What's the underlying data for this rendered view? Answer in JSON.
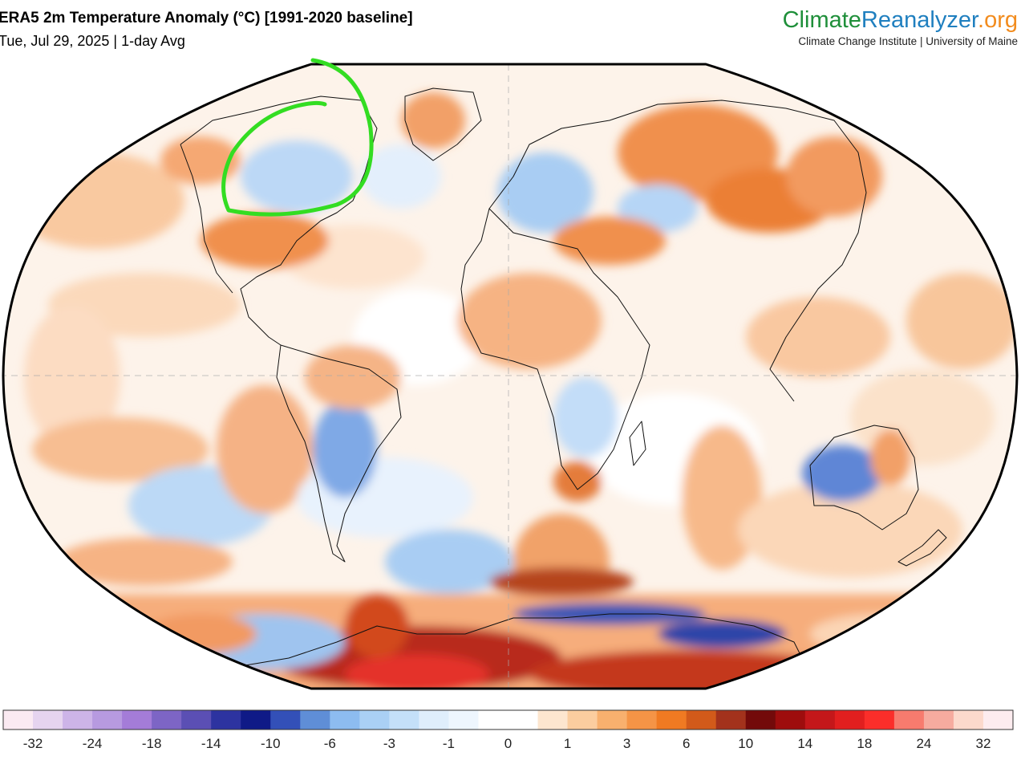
{
  "header": {
    "title": "ERA5 2m Temperature Anomaly (°C) [1991-2020 baseline]",
    "subtitle": "Tue, Jul 29, 2025 | 1-day Avg"
  },
  "brand": {
    "name_part1": "Climate",
    "name_part2": "Reanalyzer",
    "name_part3": ".org",
    "tagline": "Climate Change Institute | University of Maine",
    "colors": {
      "part1": "#1f8f3a",
      "part2": "#1f7fbf",
      "part3": "#f28c1e"
    }
  },
  "map": {
    "projection": "robinson",
    "annotation": {
      "shape": "hand-drawn-circle",
      "color": "#33dd22",
      "region": "Canadian Arctic / Hudson Bay"
    }
  },
  "colorbar": {
    "labels": [
      "-32",
      "-24",
      "-18",
      "-14",
      "-10",
      "-6",
      "-3",
      "-1",
      "0",
      "1",
      "3",
      "6",
      "10",
      "14",
      "18",
      "24",
      "32"
    ],
    "colors": [
      "#fbeaf2",
      "#e6d4ef",
      "#cdb4e8",
      "#b79ae0",
      "#a47cd8",
      "#7d65c5",
      "#5b4fb4",
      "#2d33a0",
      "#0f1a87",
      "#3350b8",
      "#5f8ed7",
      "#8dbcf0",
      "#aad0f5",
      "#c4e0f9",
      "#dfeefc",
      "#eef6fe",
      "#ffffff",
      "#ffffff",
      "#fde6cf",
      "#fbcd9f",
      "#f8b06e",
      "#f59446",
      "#f07a22",
      "#d25a1a",
      "#a3321c",
      "#730a0a",
      "#9e0d0d",
      "#c4171a",
      "#e11f1f",
      "#fb2e2a",
      "#f77b6e",
      "#f6ab9f",
      "#fcd9cc",
      "#fdecef"
    ]
  }
}
